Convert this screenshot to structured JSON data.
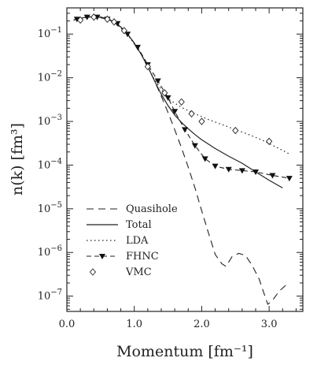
{
  "chart_data": {
    "type": "line",
    "xlabel": "Momentum [fm⁻¹]",
    "ylabel": "n(k) [fm³]",
    "xlim": [
      0.0,
      3.5
    ],
    "ylog": true,
    "ylim_exponent": [
      -7.35,
      -0.4
    ],
    "x_ticks": [
      0.0,
      1.0,
      2.0,
      3.0
    ],
    "x_tick_labels": [
      "0.0",
      "1.0",
      "2.0",
      "3.0"
    ],
    "y_tick_exponents": [
      -1,
      -2,
      -3,
      -4,
      -5,
      -6,
      -7
    ],
    "y_tick_mantissa": "10",
    "legend_position": "lower-left",
    "series": [
      {
        "name": "Quasihole",
        "style": "dashed",
        "points": [
          [
            0.1,
            0.21
          ],
          [
            0.2,
            0.23
          ],
          [
            0.3,
            0.245
          ],
          [
            0.4,
            0.25
          ],
          [
            0.5,
            0.245
          ],
          [
            0.6,
            0.225
          ],
          [
            0.7,
            0.19
          ],
          [
            0.8,
            0.145
          ],
          [
            0.9,
            0.1
          ],
          [
            1.0,
            0.062
          ],
          [
            1.1,
            0.035
          ],
          [
            1.2,
            0.018
          ],
          [
            1.3,
            0.0085
          ],
          [
            1.4,
            0.0038
          ],
          [
            1.5,
            0.0016
          ],
          [
            1.6,
            0.00065
          ],
          [
            1.7,
            0.00025
          ],
          [
            1.8,
            9e-05
          ],
          [
            1.9,
            3e-05
          ],
          [
            2.0,
            9e-06
          ],
          [
            2.1,
            2.8e-06
          ],
          [
            2.2,
            9e-07
          ],
          [
            2.3,
            5.5e-07
          ],
          [
            2.36,
            4.8e-07
          ],
          [
            2.45,
            8e-07
          ],
          [
            2.55,
            9.5e-07
          ],
          [
            2.65,
            8.5e-07
          ],
          [
            2.75,
            5e-07
          ],
          [
            2.85,
            2.5e-07
          ],
          [
            2.92,
            1.2e-07
          ],
          [
            2.98,
            6.5e-08
          ],
          [
            3.05,
            8e-08
          ],
          [
            3.15,
            1.3e-07
          ],
          [
            3.25,
            1.8e-07
          ]
        ]
      },
      {
        "name": "Total",
        "style": "solid",
        "points": [
          [
            0.1,
            0.21
          ],
          [
            0.2,
            0.23
          ],
          [
            0.3,
            0.245
          ],
          [
            0.4,
            0.25
          ],
          [
            0.5,
            0.245
          ],
          [
            0.6,
            0.225
          ],
          [
            0.7,
            0.19
          ],
          [
            0.8,
            0.145
          ],
          [
            0.9,
            0.1
          ],
          [
            1.0,
            0.062
          ],
          [
            1.1,
            0.035
          ],
          [
            1.2,
            0.018
          ],
          [
            1.3,
            0.0085
          ],
          [
            1.4,
            0.0042
          ],
          [
            1.5,
            0.0023
          ],
          [
            1.6,
            0.0014
          ],
          [
            1.7,
            0.00095
          ],
          [
            1.8,
            0.00068
          ],
          [
            1.9,
            0.0005
          ],
          [
            2.0,
            0.00038
          ],
          [
            2.2,
            0.00024
          ],
          [
            2.4,
            0.00016
          ],
          [
            2.6,
            0.00011
          ],
          [
            2.8,
            7e-05
          ],
          [
            3.0,
            4.5e-05
          ],
          [
            3.2,
            3e-05
          ]
        ]
      },
      {
        "name": "LDA",
        "style": "dotted",
        "points": [
          [
            0.1,
            0.21
          ],
          [
            0.3,
            0.245
          ],
          [
            0.5,
            0.245
          ],
          [
            0.7,
            0.19
          ],
          [
            0.9,
            0.1
          ],
          [
            1.1,
            0.035
          ],
          [
            1.3,
            0.009
          ],
          [
            1.5,
            0.0033
          ],
          [
            1.7,
            0.0021
          ],
          [
            1.9,
            0.0015
          ],
          [
            2.1,
            0.0011
          ],
          [
            2.3,
            0.00085
          ],
          [
            2.5,
            0.00065
          ],
          [
            2.7,
            0.0005
          ],
          [
            2.9,
            0.00037
          ],
          [
            3.1,
            0.00026
          ],
          [
            3.3,
            0.00018
          ]
        ]
      },
      {
        "name": "FHNC",
        "style": "dashed-markers",
        "marker": "triangle-down-filled",
        "points": [
          [
            0.15,
            0.22
          ],
          [
            0.3,
            0.245
          ],
          [
            0.45,
            0.245
          ],
          [
            0.6,
            0.22
          ],
          [
            0.75,
            0.175
          ],
          [
            0.9,
            0.1
          ],
          [
            1.05,
            0.05
          ],
          [
            1.2,
            0.02
          ],
          [
            1.35,
            0.0085
          ],
          [
            1.5,
            0.0035
          ],
          [
            1.6,
            0.0017
          ],
          [
            1.75,
            0.00065
          ],
          [
            1.9,
            0.00028
          ],
          [
            2.05,
            0.00014
          ],
          [
            2.2,
            9.5e-05
          ],
          [
            2.4,
            8e-05
          ],
          [
            2.6,
            7.5e-05
          ],
          [
            2.8,
            7e-05
          ],
          [
            3.05,
            5.8e-05
          ],
          [
            3.3,
            5e-05
          ]
        ],
        "marker_x": [
          0.15,
          0.3,
          0.45,
          0.6,
          0.75,
          0.9,
          1.05,
          1.2,
          1.35,
          1.5,
          1.6,
          1.75,
          1.9,
          2.05,
          2.2,
          2.4,
          2.6,
          2.8,
          3.05,
          3.3
        ]
      },
      {
        "name": "VMC",
        "style": "markers-only",
        "marker": "diamond-open",
        "points": [
          [
            0.2,
            0.21
          ],
          [
            0.4,
            0.245
          ],
          [
            0.6,
            0.22
          ],
          [
            0.7,
            0.19
          ],
          [
            0.85,
            0.12
          ],
          [
            1.2,
            0.018
          ],
          [
            1.45,
            0.0045
          ],
          [
            1.7,
            0.0028
          ],
          [
            1.85,
            0.0015
          ],
          [
            2.0,
            0.001
          ],
          [
            2.5,
            0.00062
          ],
          [
            3.0,
            0.00035
          ]
        ]
      }
    ]
  }
}
